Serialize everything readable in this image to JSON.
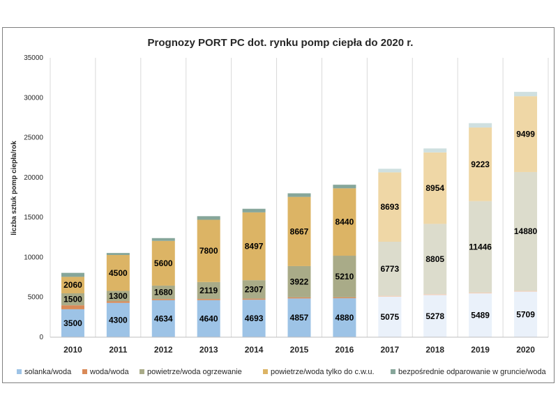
{
  "chart_data": {
    "type": "bar",
    "stacked": true,
    "title": "Prognozy PORT PC dot. rynku pomp ciepła do 2020 r.",
    "xlabel": "",
    "ylabel": "liczba sztuk pomp ciepła/rok",
    "ylim": [
      0,
      35000
    ],
    "yticks": [
      0,
      5000,
      10000,
      15000,
      20000,
      25000,
      30000,
      35000
    ],
    "grid": "vertical",
    "legend": "bottom",
    "categories": [
      "2010",
      "2011",
      "2012",
      "2013",
      "2014",
      "2015",
      "2016",
      "2017",
      "2018",
      "2019",
      "2020"
    ],
    "forecast_from": "2017",
    "series": [
      {
        "name": "solanka/woda",
        "color": "#9dc3e6",
        "forecast_color": "#eaf1fa",
        "values": [
          3500,
          4300,
          4634,
          4640,
          4693,
          4857,
          4880,
          5075,
          5278,
          5489,
          5709
        ],
        "labeled": true
      },
      {
        "name": "woda/woda",
        "color": "#d98a58",
        "forecast_color": "#f2cdb5",
        "values": [
          500,
          200,
          150,
          150,
          140,
          130,
          120,
          110,
          110,
          110,
          100
        ],
        "labeled": false
      },
      {
        "name": "powietrze/woda ogrzewanie",
        "color": "#a9ab88",
        "forecast_color": "#dcdccc",
        "values": [
          1500,
          1300,
          1680,
          2119,
          2307,
          3922,
          5210,
          6773,
          8805,
          11446,
          14880
        ],
        "labeled": true
      },
      {
        "name": "powietrze/woda tylko do c.w.u.",
        "color": "#dcb465",
        "forecast_color": "#efd7a6",
        "values": [
          2060,
          4500,
          5600,
          7800,
          8497,
          8667,
          8440,
          8693,
          8954,
          9223,
          9499
        ],
        "labeled": true
      },
      {
        "name": "bezpośrednie odparowanie w gruncie/woda",
        "color": "#86a69a",
        "forecast_color": "#cfe0e0",
        "values": [
          500,
          250,
          350,
          450,
          450,
          450,
          450,
          450,
          500,
          550,
          550
        ],
        "labeled": false
      }
    ]
  }
}
